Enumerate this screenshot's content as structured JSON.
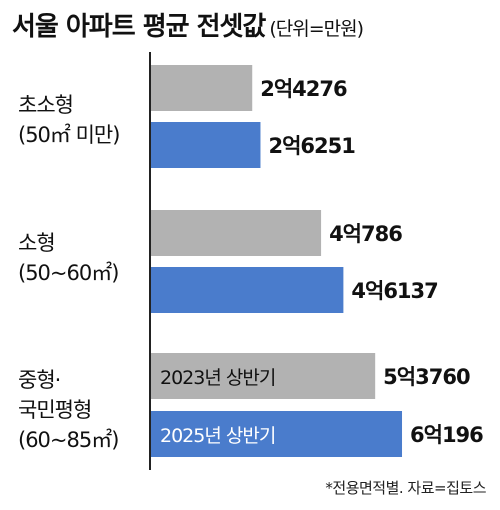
{
  "title": "서울 아파트 평균 전셋값",
  "unit": "(단위=만원)",
  "source": "*전용면적별. 자료=집토스",
  "chart_data": {
    "type": "bar",
    "orientation": "horizontal",
    "title": "서울 아파트 평균 전셋값",
    "unit_note": "(단위=만원)",
    "categories": [
      [
        "초소형",
        "(50㎡ 미만)"
      ],
      [
        "소형",
        "(50~60㎡)"
      ],
      [
        "중형·",
        "국민평형",
        "(60~85㎡)"
      ]
    ],
    "series": [
      {
        "name": "2023년 상반기",
        "color": "#b2b2b2",
        "values": [
          24276,
          40786,
          53760
        ],
        "labels": [
          "2억4276",
          "4억786",
          "5억3760"
        ]
      },
      {
        "name": "2025년 상반기",
        "color": "#4a7ccc",
        "values": [
          26251,
          46137,
          60196
        ],
        "labels": [
          "2억6251",
          "4억6137",
          "6억196"
        ]
      }
    ],
    "legend": "inside-bars"
  }
}
